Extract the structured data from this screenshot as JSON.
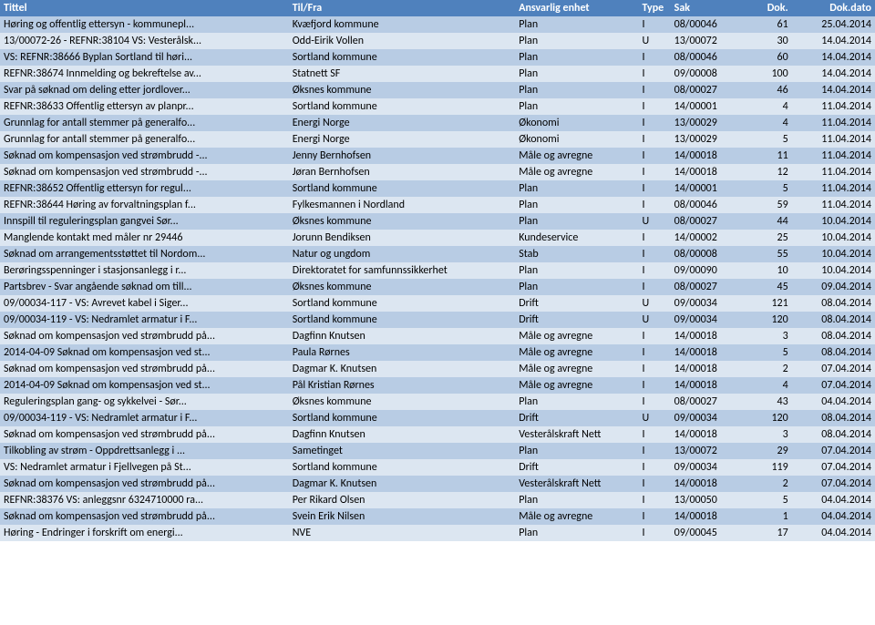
{
  "colors": {
    "header_bg": "#4f81bd",
    "header_fg": "#ffffff",
    "row_odd_bg": "#b8cce4",
    "row_even_bg": "#dce6f1",
    "text": "#000000"
  },
  "fonts": {
    "family": "Calibri, Arial, sans-serif",
    "size_pt": 9
  },
  "columns": [
    {
      "key": "tittel",
      "label": "Tittel",
      "class": "col-tittel"
    },
    {
      "key": "tilfra",
      "label": "Til/Fra",
      "class": "col-tilfra"
    },
    {
      "key": "enhet",
      "label": "Ansvarlig enhet",
      "class": "col-enhet"
    },
    {
      "key": "type",
      "label": "Type",
      "class": "col-type"
    },
    {
      "key": "sak",
      "label": "Sak",
      "class": "col-sak"
    },
    {
      "key": "dok",
      "label": "Dok.",
      "class": "col-dok"
    },
    {
      "key": "dato",
      "label": "Dok.dato",
      "class": "col-dato"
    }
  ],
  "rows": [
    [
      "Høring og offentlig ettersyn - kommunepl...",
      "Kvæfjord kommune",
      "Plan",
      "I",
      "08/00046",
      "61",
      "25.04.2014"
    ],
    [
      "13/00072-26 - REFNR:38104 VS: Vesterålsk...",
      "Odd-Eirik Vollen",
      "Plan",
      "U",
      "13/00072",
      "30",
      "14.04.2014"
    ],
    [
      "VS: REFNR:38666 Byplan Sortland til høri...",
      "Sortland kommune",
      "Plan",
      "I",
      "08/00046",
      "60",
      "14.04.2014"
    ],
    [
      "REFNR:38674 Innmelding og bekreftelse av...",
      "Statnett SF",
      "Plan",
      "I",
      "09/00008",
      "100",
      "14.04.2014"
    ],
    [
      "Svar på søknad om deling etter jordlover...",
      "Øksnes kommune",
      "Plan",
      "I",
      "08/00027",
      "46",
      "14.04.2014"
    ],
    [
      "REFNR:38633 Offentlig ettersyn av planpr...",
      "Sortland kommune",
      "Plan",
      "I",
      "14/00001",
      "4",
      "11.04.2014"
    ],
    [
      "Grunnlag for antall stemmer på generalfo...",
      "Energi Norge",
      "Økonomi",
      "I",
      "13/00029",
      "4",
      "11.04.2014"
    ],
    [
      "Grunnlag for antall stemmer på generalfo...",
      "Energi Norge",
      "Økonomi",
      "I",
      "13/00029",
      "5",
      "11.04.2014"
    ],
    [
      "Søknad om kompensasjon ved strømbrudd -...",
      "Jenny Bernhofsen",
      "Måle og avregne",
      "I",
      "14/00018",
      "11",
      "11.04.2014"
    ],
    [
      "Søknad om kompensasjon ved strømbrudd -...",
      "Jøran Bernhofsen",
      "Måle og avregne",
      "I",
      "14/00018",
      "12",
      "11.04.2014"
    ],
    [
      "REFNR:38652 Offentlig ettersyn for regul...",
      "Sortland kommune",
      "Plan",
      "I",
      "14/00001",
      "5",
      "11.04.2014"
    ],
    [
      "REFNR:38644 Høring av forvaltningsplan f...",
      "Fylkesmannen i Nordland",
      "Plan",
      "I",
      "08/00046",
      "59",
      "11.04.2014"
    ],
    [
      "Innspill til reguleringsplan gangvei Sør...",
      "Øksnes kommune",
      "Plan",
      "U",
      "08/00027",
      "44",
      "10.04.2014"
    ],
    [
      "Manglende kontakt med måler nr 29446",
      "Jorunn Bendiksen",
      "Kundeservice",
      "I",
      "14/00002",
      "25",
      "10.04.2014"
    ],
    [
      "Søknad om arrangementsstøttet til Nordom...",
      "Natur og ungdom",
      "Stab",
      "I",
      "08/00008",
      "55",
      "10.04.2014"
    ],
    [
      "Berøringsspenninger i stasjonsanlegg i r...",
      "Direktoratet for samfunnssikkerhet",
      "Plan",
      "I",
      "09/00090",
      "10",
      "10.04.2014"
    ],
    [
      "Partsbrev - Svar angående søknad om till...",
      "Øksnes kommune",
      "Plan",
      "I",
      "08/00027",
      "45",
      "09.04.2014"
    ],
    [
      "09/00034-117 - VS: Avrevet kabel i Siger...",
      "Sortland kommune",
      "Drift",
      "U",
      "09/00034",
      "121",
      "08.04.2014"
    ],
    [
      "09/00034-119 - VS: Nedramlet armatur i F...",
      "Sortland kommune",
      "Drift",
      "U",
      "09/00034",
      "120",
      "08.04.2014"
    ],
    [
      "Søknad om kompensasjon ved strømbrudd på...",
      "Dagfinn Knutsen",
      "Måle og avregne",
      "I",
      "14/00018",
      "3",
      "08.04.2014"
    ],
    [
      "2014-04-09 Søknad om kompensasjon ved st...",
      "Paula Rørnes",
      "Måle og avregne",
      "I",
      "14/00018",
      "5",
      "08.04.2014"
    ],
    [
      "Søknad om kompensasjon ved strømbrudd på...",
      "Dagmar K. Knutsen",
      "Måle og avregne",
      "I",
      "14/00018",
      "2",
      "07.04.2014"
    ],
    [
      "2014-04-09 Søknad om kompensasjon ved st...",
      "Pål Kristian Rørnes",
      "Måle og avregne",
      "I",
      "14/00018",
      "4",
      "07.04.2014"
    ],
    [
      "Reguleringsplan gang- og sykkelvei - Sør...",
      "Øksnes kommune",
      "Plan",
      "I",
      "08/00027",
      "43",
      "04.04.2014"
    ],
    [
      "09/00034-119 - VS: Nedramlet armatur i F...",
      "Sortland kommune",
      "Drift",
      "U",
      "09/00034",
      "120",
      "08.04.2014"
    ],
    [
      "Søknad om kompensasjon ved strømbrudd på...",
      "Dagfinn Knutsen",
      "Vesterålskraft Nett",
      "I",
      "14/00018",
      "3",
      "08.04.2014"
    ],
    [
      "Tilkobling av strøm - Oppdrettsanlegg i ...",
      "Sametinget",
      "Plan",
      "I",
      "13/00072",
      "29",
      "07.04.2014"
    ],
    [
      "VS: Nedramlet armatur i Fjellvegen på St...",
      "Sortland kommune",
      "Drift",
      "I",
      "09/00034",
      "119",
      "07.04.2014"
    ],
    [
      "Søknad om kompensasjon ved strømbrudd på...",
      "Dagmar K. Knutsen",
      "Vesterålskraft Nett",
      "I",
      "14/00018",
      "2",
      "07.04.2014"
    ],
    [
      "REFNR:38376 VS:  anleggsnr 6324710000 ra...",
      "Per Rikard Olsen",
      "Plan",
      "I",
      "13/00050",
      "5",
      "04.04.2014"
    ],
    [
      "Søknad om kompensasjon ved strømbrudd på...",
      "Svein Erik Nilsen",
      "Måle og avregne",
      "I",
      "14/00018",
      "1",
      "04.04.2014"
    ],
    [
      "Høring - Endringer i forskrift om energi...",
      "NVE",
      "Plan",
      "I",
      "09/00045",
      "17",
      "04.04.2014"
    ]
  ]
}
